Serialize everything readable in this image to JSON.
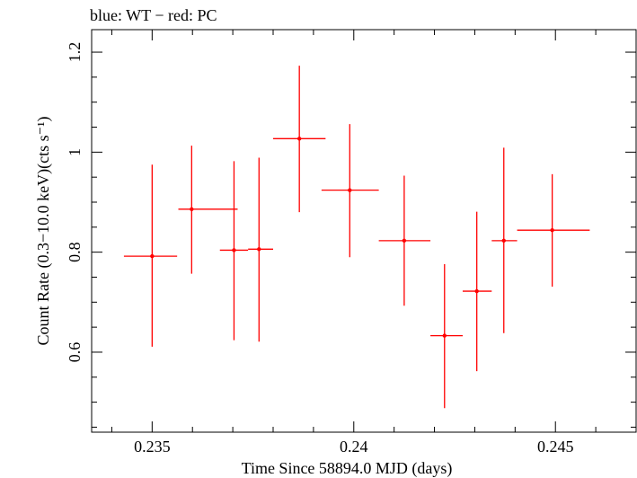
{
  "chart_data": {
    "type": "scatter",
    "title": "blue: WT − red: PC",
    "xlabel": "Time Since 58894.0 MJD (days)",
    "ylabel": "Count Rate (0.3−10.0 keV)(cts s⁻¹)",
    "xlim": [
      0.2335,
      0.247
    ],
    "ylim": [
      0.44,
      1.245
    ],
    "x_ticks": [
      {
        "value": 0.235,
        "label": "0.235"
      },
      {
        "value": 0.24,
        "label": "0.24"
      },
      {
        "value": 0.245,
        "label": "0.245"
      }
    ],
    "y_ticks": [
      {
        "value": 0.6,
        "label": "0.6"
      },
      {
        "value": 0.8,
        "label": "0.8"
      },
      {
        "value": 1.0,
        "label": "1"
      },
      {
        "value": 1.2,
        "label": "1.2"
      }
    ],
    "series": [
      {
        "name": "PC",
        "color": "#ff0000",
        "points": [
          {
            "x": 0.235,
            "y": 0.792,
            "xlo": 0.2343,
            "xhi": 0.23562,
            "ylo": 0.611,
            "yhi": 0.975
          },
          {
            "x": 0.23598,
            "y": 0.886,
            "xlo": 0.23565,
            "xhi": 0.23712,
            "ylo": 0.757,
            "yhi": 1.013
          },
          {
            "x": 0.23703,
            "y": 0.804,
            "xlo": 0.23668,
            "xhi": 0.23738,
            "ylo": 0.624,
            "yhi": 0.982
          },
          {
            "x": 0.23765,
            "y": 0.806,
            "xlo": 0.23738,
            "xhi": 0.238,
            "ylo": 0.621,
            "yhi": 0.989
          },
          {
            "x": 0.23865,
            "y": 1.027,
            "xlo": 0.238,
            "xhi": 0.2393,
            "ylo": 0.88,
            "yhi": 1.173
          },
          {
            "x": 0.2399,
            "y": 0.924,
            "xlo": 0.2392,
            "xhi": 0.24062,
            "ylo": 0.79,
            "yhi": 1.056
          },
          {
            "x": 0.24125,
            "y": 0.823,
            "xlo": 0.24062,
            "xhi": 0.2419,
            "ylo": 0.693,
            "yhi": 0.953
          },
          {
            "x": 0.24225,
            "y": 0.633,
            "xlo": 0.2419,
            "xhi": 0.2427,
            "ylo": 0.488,
            "yhi": 0.776
          },
          {
            "x": 0.24305,
            "y": 0.722,
            "xlo": 0.2427,
            "xhi": 0.24342,
            "ylo": 0.562,
            "yhi": 0.881
          },
          {
            "x": 0.24372,
            "y": 0.823,
            "xlo": 0.24342,
            "xhi": 0.24405,
            "ylo": 0.638,
            "yhi": 1.009
          },
          {
            "x": 0.24492,
            "y": 0.844,
            "xlo": 0.24405,
            "xhi": 0.24585,
            "ylo": 0.731,
            "yhi": 0.956
          }
        ]
      }
    ]
  }
}
